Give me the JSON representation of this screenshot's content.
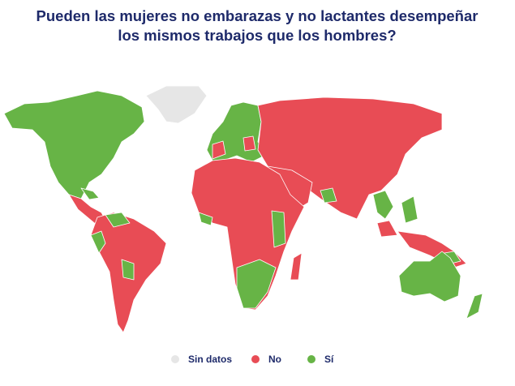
{
  "header": {
    "title": [
      "Pueden las mujeres no embarazas y no lactantes desempeñar",
      "los mismos trabajos que los hombres?"
    ]
  },
  "legend": {
    "items": [
      {
        "label": "Sin datos",
        "color": "#e6e6e6"
      },
      {
        "label": "No",
        "color": "#e84c55"
      },
      {
        "label": "Sí",
        "color": "#67b446"
      }
    ]
  }
}
